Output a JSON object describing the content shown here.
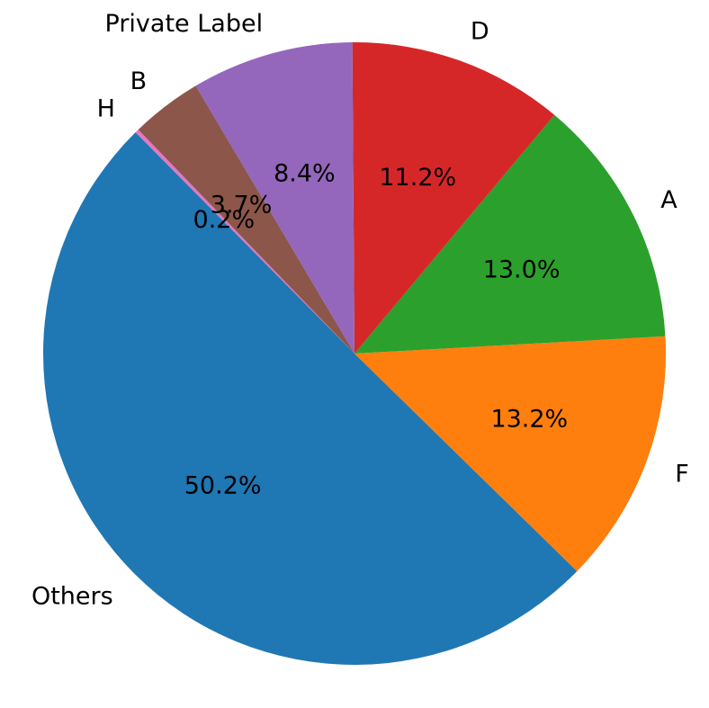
{
  "chart_data": {
    "type": "pie",
    "title": "",
    "start_angle_deg": 134,
    "direction": "counterclockwise",
    "categories": [
      "H",
      "Others",
      "F",
      "A",
      "D",
      "Private Label",
      "B"
    ],
    "values": [
      0.2,
      50.2,
      13.2,
      13.0,
      11.2,
      8.4,
      3.7
    ],
    "value_labels": [
      "0.2%",
      "50.2%",
      "13.2%",
      "13.0%",
      "11.2%",
      "8.4%",
      "3.7%"
    ],
    "colors": [
      "#e377c2",
      "#1f77b4",
      "#ff7f0e",
      "#2ca02c",
      "#d62728",
      "#9467bd",
      "#8c564b"
    ],
    "legend": "none"
  }
}
